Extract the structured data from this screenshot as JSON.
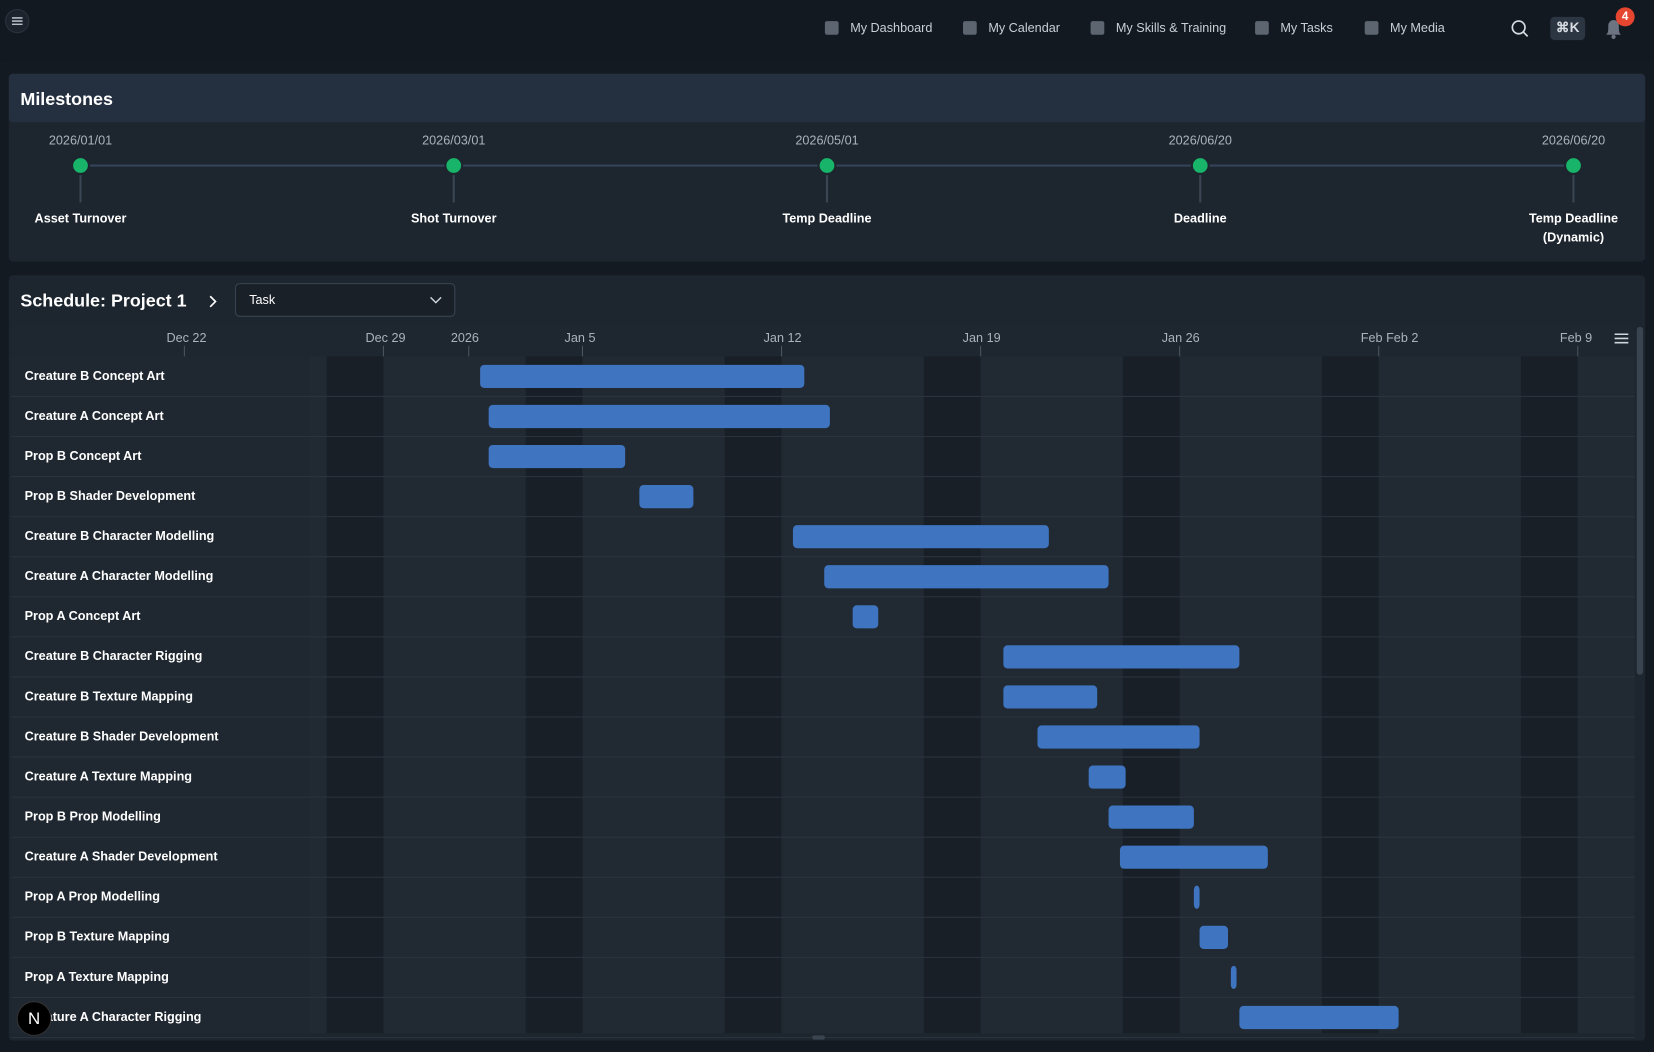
{
  "nav": {
    "items": [
      "My Dashboard",
      "My Calendar",
      "My Skills & Training",
      "My Tasks",
      "My Media"
    ],
    "shortcut": "⌘K",
    "notifications": 4
  },
  "milestones": {
    "title": "Milestones",
    "items": [
      {
        "date": "2026/01/01",
        "label": "Asset Turnover"
      },
      {
        "date": "2026/03/01",
        "label": "Shot Turnover"
      },
      {
        "date": "2026/05/01",
        "label": "Temp Deadline"
      },
      {
        "date": "2026/06/20",
        "label": "Deadline"
      },
      {
        "date": "2026/06/20",
        "label": "Temp Deadline (Dynamic)"
      }
    ]
  },
  "schedule": {
    "title": "Schedule: Project 1",
    "view": "Task",
    "gantt": {
      "xlim": [
        -16.1,
        41
      ],
      "xticks": [
        {
          "value": -10,
          "label": "Dec 22"
        },
        {
          "value": -3,
          "label": "Dec 29"
        },
        {
          "value": 0,
          "label": "2026"
        },
        {
          "value": 4,
          "label": "Jan 5"
        },
        {
          "value": 11,
          "label": "Jan 12"
        },
        {
          "value": 18,
          "label": "Jan 19"
        },
        {
          "value": 25,
          "label": "Jan 26"
        },
        {
          "value": 32,
          "label": "Feb Feb 2"
        },
        {
          "value": 39,
          "label": "Feb 9"
        }
      ],
      "tasks": [
        {
          "name": "Creature B Concept Art",
          "start": 0.4,
          "end": 11.8
        },
        {
          "name": "Creature A Concept Art",
          "start": 0.7,
          "end": 12.7
        },
        {
          "name": "Prop B Concept Art",
          "start": 0.7,
          "end": 5.5
        },
        {
          "name": "Prop B Shader Development",
          "start": 6.0,
          "end": 7.9
        },
        {
          "name": "Creature B Character Modelling",
          "start": 11.4,
          "end": 20.4
        },
        {
          "name": "Creature A Character Modelling",
          "start": 12.5,
          "end": 22.5
        },
        {
          "name": "Prop A Concept Art",
          "start": 13.5,
          "end": 14.4
        },
        {
          "name": "Creature B Character Rigging",
          "start": 18.8,
          "end": 27.1
        },
        {
          "name": "Creature B Texture Mapping",
          "start": 18.8,
          "end": 22.1
        },
        {
          "name": "Creature B Shader Development",
          "start": 20.0,
          "end": 25.7
        },
        {
          "name": "Creature A Texture Mapping",
          "start": 21.8,
          "end": 23.1
        },
        {
          "name": "Prop B Prop Modelling",
          "start": 22.5,
          "end": 25.5
        },
        {
          "name": "Creature A Shader Development",
          "start": 22.9,
          "end": 28.1
        },
        {
          "name": "Prop A Prop Modelling",
          "start": 25.5,
          "end": 25.7
        },
        {
          "name": "Prop B Texture Mapping",
          "start": 25.7,
          "end": 26.7
        },
        {
          "name": "Prop A Texture Mapping",
          "start": 26.8,
          "end": 27.0
        },
        {
          "name": "Creature A Character Rigging",
          "start": 27.1,
          "end": 32.7
        }
      ]
    }
  },
  "badge": "N"
}
